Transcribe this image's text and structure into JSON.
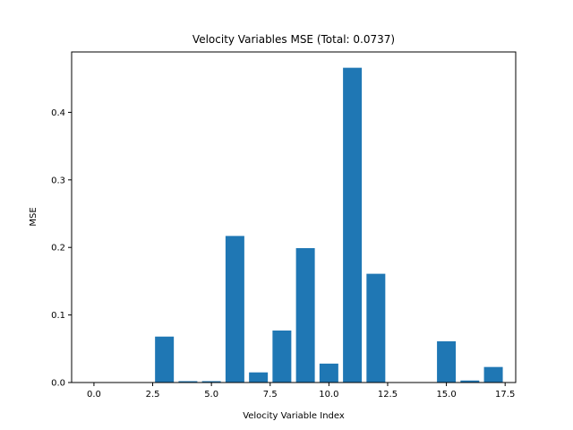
{
  "chart_data": {
    "type": "bar",
    "title": "Velocity Variables MSE (Total: 0.0737)",
    "xlabel": "Velocity Variable Index",
    "ylabel": "MSE",
    "x": [
      0,
      1,
      2,
      3,
      4,
      5,
      6,
      7,
      8,
      9,
      10,
      11,
      12,
      13,
      14,
      15,
      16,
      17
    ],
    "values": [
      0.0,
      0.0,
      0.0,
      0.068,
      0.002,
      0.002,
      0.217,
      0.015,
      0.077,
      0.199,
      0.028,
      0.466,
      0.161,
      0.0,
      0.0,
      0.061,
      0.003,
      0.023
    ],
    "xlim": [
      -0.95,
      17.95
    ],
    "ylim": [
      0,
      0.4894
    ],
    "xticks": [
      0.0,
      2.5,
      5.0,
      7.5,
      10.0,
      12.5,
      15.0,
      17.5
    ],
    "xtick_labels": [
      "0.0",
      "2.5",
      "5.0",
      "7.5",
      "10.0",
      "12.5",
      "15.0",
      "17.5"
    ],
    "yticks": [
      0.0,
      0.1,
      0.2,
      0.3,
      0.4
    ],
    "ytick_labels": [
      "0.0",
      "0.1",
      "0.2",
      "0.3",
      "0.4"
    ],
    "bar_width": 0.8,
    "bar_color": "#1f77b4",
    "grid": false
  }
}
